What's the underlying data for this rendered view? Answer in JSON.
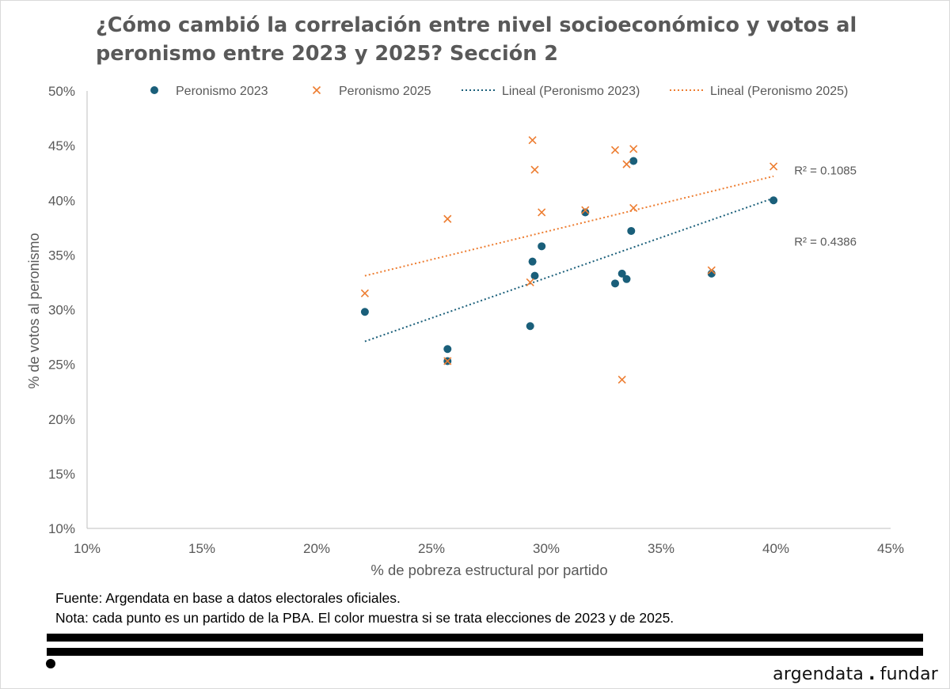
{
  "title_lines": [
    "¿Cómo cambió la correlación entre nivel socioeconómico y votos al",
    "peronismo entre 2023 y 2025? Sección 2"
  ],
  "colors": {
    "s2023": "#1a5f7a",
    "s2025": "#ed7d31",
    "axis": "#bfbfbf",
    "text": "#595959"
  },
  "notes": {
    "source": "Fuente: Argendata en base a datos electorales oficiales.",
    "note": "Nota: cada punto es un partido de la PBA. El color muestra si se trata elecciones de 2023 y de 2025."
  },
  "brand": {
    "left": "argendata",
    "sep": ".",
    "right": "fundar"
  },
  "chart_data": {
    "type": "scatter",
    "title": "¿Cómo cambió la correlación entre nivel socioeconómico y votos al peronismo entre 2023 y 2025? Sección 2",
    "xlabel": "% de pobreza estructural por partido",
    "ylabel": "% de votos al peronismo",
    "xlim": [
      10,
      45
    ],
    "ylim": [
      10,
      50
    ],
    "x_ticks": [
      10,
      15,
      20,
      25,
      30,
      35,
      40,
      45
    ],
    "y_ticks": [
      10,
      15,
      20,
      25,
      30,
      35,
      40,
      45,
      50
    ],
    "x_tick_labels": [
      "10%",
      "15%",
      "20%",
      "25%",
      "30%",
      "35%",
      "40%",
      "45%"
    ],
    "y_tick_labels": [
      "10%",
      "15%",
      "20%",
      "25%",
      "30%",
      "35%",
      "40%",
      "45%",
      "50%"
    ],
    "grid": false,
    "legend_position": "top",
    "legend": [
      "Peronismo 2023",
      "Peronismo 2025",
      "Lineal (Peronismo 2023)",
      "Lineal (Peronismo 2025)"
    ],
    "series": [
      {
        "name": "Peronismo 2023",
        "marker": "circle",
        "points": [
          [
            22.1,
            29.8
          ],
          [
            25.7,
            26.4
          ],
          [
            25.7,
            25.3
          ],
          [
            29.3,
            28.5
          ],
          [
            29.4,
            34.4
          ],
          [
            29.5,
            33.1
          ],
          [
            29.8,
            35.8
          ],
          [
            31.7,
            38.9
          ],
          [
            33.0,
            32.4
          ],
          [
            33.3,
            33.3
          ],
          [
            33.5,
            32.8
          ],
          [
            33.7,
            37.2
          ],
          [
            33.8,
            43.6
          ],
          [
            37.2,
            33.3
          ],
          [
            39.9,
            40.0
          ]
        ]
      },
      {
        "name": "Peronismo 2025",
        "marker": "x",
        "points": [
          [
            22.1,
            31.5
          ],
          [
            25.7,
            38.3
          ],
          [
            25.7,
            25.3
          ],
          [
            29.3,
            32.5
          ],
          [
            29.4,
            45.5
          ],
          [
            29.5,
            42.8
          ],
          [
            29.8,
            38.9
          ],
          [
            31.7,
            39.1
          ],
          [
            33.0,
            44.6
          ],
          [
            33.3,
            23.6
          ],
          [
            33.5,
            43.3
          ],
          [
            33.8,
            44.7
          ],
          [
            33.8,
            39.3
          ],
          [
            37.2,
            33.6
          ],
          [
            39.9,
            43.1
          ]
        ]
      }
    ],
    "trendlines": [
      {
        "name": "Lineal (Peronismo 2023)",
        "from": [
          22.1,
          27.1
        ],
        "to": [
          39.9,
          40.2
        ],
        "r2_label": "R² = 0.4386",
        "label_at": [
          40.8,
          36.3
        ]
      },
      {
        "name": "Lineal (Peronismo 2025)",
        "from": [
          22.1,
          33.1
        ],
        "to": [
          39.9,
          42.2
        ],
        "r2_label": "R² = 0.1085",
        "label_at": [
          40.8,
          42.8
        ]
      }
    ]
  }
}
